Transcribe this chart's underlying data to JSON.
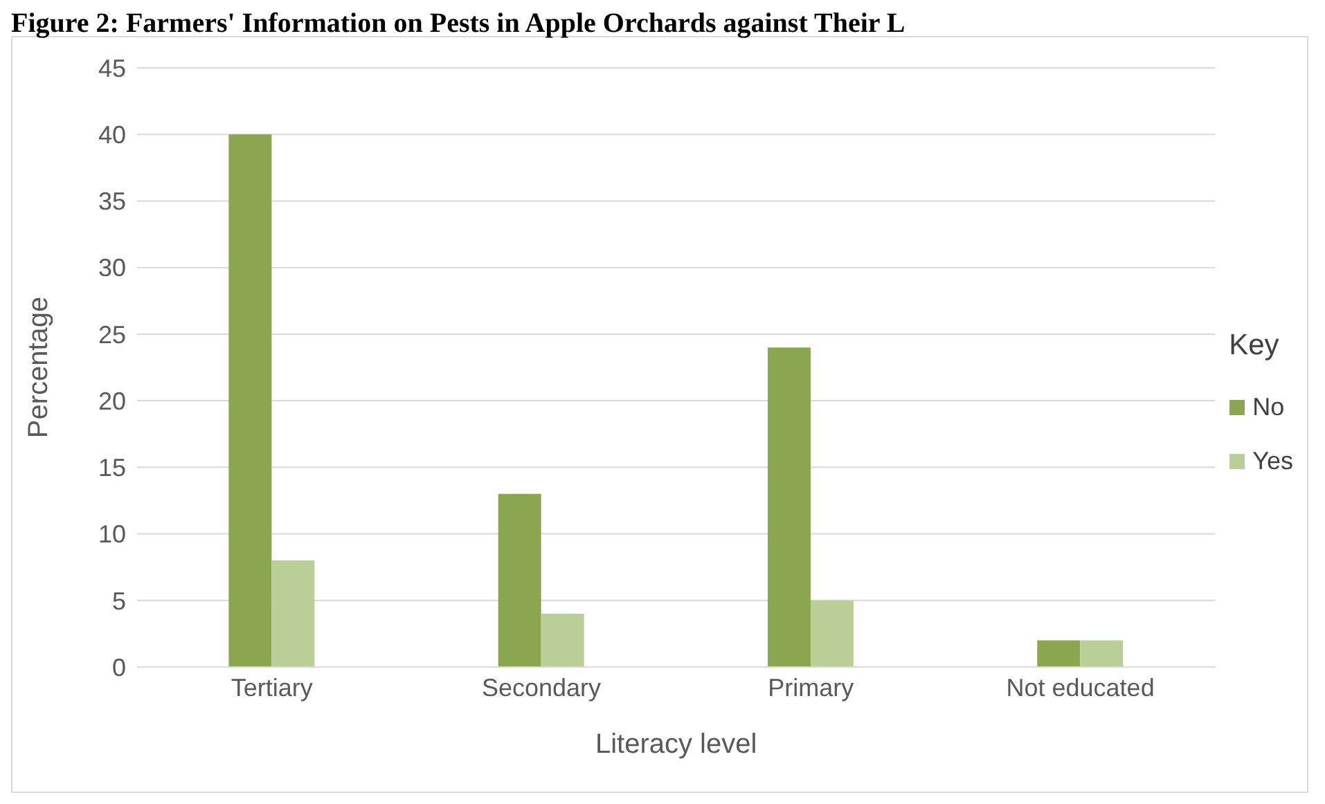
{
  "chart_data": {
    "type": "bar",
    "title": "Figure 2: Farmers' Information on Pests in Apple Orchards against Their L",
    "xlabel": "Literacy level",
    "ylabel": "Percentage",
    "legend_title": "Key",
    "categories": [
      "Tertiary",
      "Secondary",
      "Primary",
      "Not educated"
    ],
    "series": [
      {
        "name": "No",
        "color": "#8aa64f",
        "values": [
          40,
          13,
          24,
          2
        ]
      },
      {
        "name": "Yes",
        "color": "#b9cf97",
        "values": [
          8,
          4,
          5,
          2
        ]
      }
    ],
    "ylim": [
      0,
      45
    ],
    "yticks": [
      0,
      5,
      10,
      15,
      20,
      25,
      30,
      35,
      40,
      45
    ],
    "grid": "y",
    "legend": "right"
  }
}
